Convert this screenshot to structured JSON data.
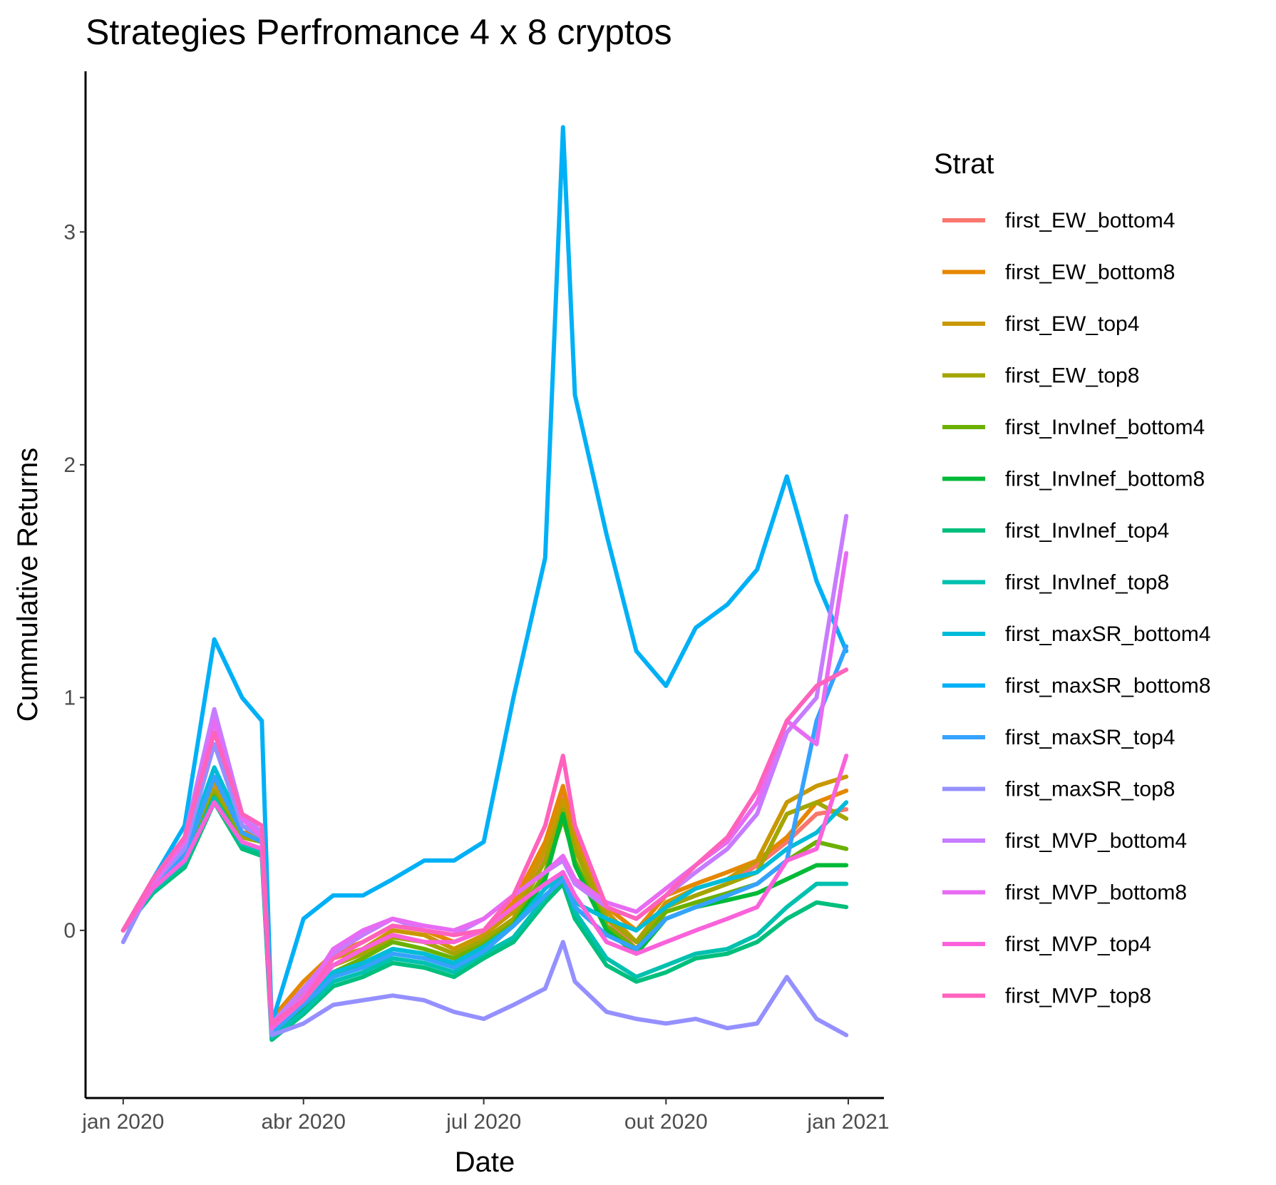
{
  "chart_data": {
    "type": "line",
    "title": "Strategies Perfromance 4 x 8 cryptos",
    "xlabel": "Date",
    "ylabel": "Cummulative Returns",
    "x_ticks": [
      {
        "date": "2020-01-01",
        "label": "jan 2020"
      },
      {
        "date": "2020-04-01",
        "label": "abr 2020"
      },
      {
        "date": "2020-07-01",
        "label": "jul 2020"
      },
      {
        "date": "2020-10-01",
        "label": "out 2020"
      },
      {
        "date": "2021-01-01",
        "label": "jan 2021"
      }
    ],
    "y_ticks": [
      0,
      1,
      2,
      3
    ],
    "xlim": [
      "2019-12-13",
      "2021-01-19"
    ],
    "ylim": [
      -0.72,
      3.69
    ],
    "grid": false,
    "legend": {
      "title": "Strat",
      "position": "right"
    },
    "x": [
      "2020-01-01",
      "2020-01-16",
      "2020-02-01",
      "2020-02-16",
      "2020-03-01",
      "2020-03-11",
      "2020-03-16",
      "2020-04-01",
      "2020-04-16",
      "2020-05-01",
      "2020-05-16",
      "2020-06-01",
      "2020-06-16",
      "2020-07-01",
      "2020-07-16",
      "2020-08-01",
      "2020-08-10",
      "2020-08-16",
      "2020-09-01",
      "2020-09-16",
      "2020-10-01",
      "2020-10-16",
      "2020-11-01",
      "2020-11-16",
      "2020-12-01",
      "2020-12-16",
      "2020-12-31"
    ],
    "series": [
      {
        "name": "first_EW_bottom4",
        "color": "#F8766D",
        "values": [
          0,
          0.18,
          0.32,
          0.62,
          0.4,
          0.38,
          -0.42,
          -0.28,
          -0.15,
          -0.1,
          -0.02,
          -0.05,
          -0.1,
          -0.05,
          0.05,
          0.32,
          0.58,
          0.35,
          0.05,
          -0.08,
          0.1,
          0.15,
          0.2,
          0.28,
          0.38,
          0.5,
          0.52
        ]
      },
      {
        "name": "first_EW_bottom8",
        "color": "#E58700",
        "values": [
          0,
          0.2,
          0.34,
          0.66,
          0.42,
          0.42,
          -0.38,
          -0.22,
          -0.1,
          -0.05,
          0.02,
          0,
          -0.05,
          0,
          0.12,
          0.38,
          0.62,
          0.4,
          0.1,
          0,
          0.15,
          0.2,
          0.25,
          0.3,
          0.4,
          0.55,
          0.6
        ]
      },
      {
        "name": "first_EW_top4",
        "color": "#C99800",
        "values": [
          0,
          0.19,
          0.33,
          0.64,
          0.41,
          0.4,
          -0.4,
          -0.25,
          -0.12,
          -0.08,
          0,
          -0.02,
          -0.08,
          -0.02,
          0.08,
          0.35,
          0.56,
          0.38,
          0.08,
          -0.05,
          0.12,
          0.18,
          0.22,
          0.3,
          0.55,
          0.62,
          0.66
        ]
      },
      {
        "name": "first_EW_top8",
        "color": "#A3A500",
        "values": [
          0,
          0.18,
          0.3,
          0.6,
          0.4,
          0.38,
          -0.4,
          -0.27,
          -0.15,
          -0.1,
          -0.03,
          -0.05,
          -0.1,
          -0.04,
          0.05,
          0.3,
          0.52,
          0.35,
          0.05,
          -0.05,
          0.1,
          0.15,
          0.2,
          0.25,
          0.5,
          0.55,
          0.48
        ]
      },
      {
        "name": "first_InvInef_bottom4",
        "color": "#6BB100",
        "values": [
          0,
          0.17,
          0.3,
          0.58,
          0.38,
          0.35,
          -0.42,
          -0.3,
          -0.18,
          -0.12,
          -0.05,
          -0.08,
          -0.12,
          -0.06,
          0.03,
          0.25,
          0.48,
          0.3,
          0.02,
          -0.08,
          0.08,
          0.12,
          0.16,
          0.2,
          0.3,
          0.38,
          0.35
        ]
      },
      {
        "name": "first_InvInef_bottom8",
        "color": "#00BA38",
        "values": [
          0,
          0.16,
          0.28,
          0.56,
          0.36,
          0.33,
          -0.45,
          -0.33,
          -0.2,
          -0.15,
          -0.08,
          -0.1,
          -0.15,
          -0.08,
          0.02,
          0.22,
          0.5,
          0.28,
          0,
          -0.1,
          0.05,
          0.1,
          0.13,
          0.16,
          0.22,
          0.28,
          0.28
        ]
      },
      {
        "name": "first_InvInef_top4",
        "color": "#00BF7D",
        "values": [
          0,
          0.16,
          0.27,
          0.55,
          0.35,
          0.32,
          -0.47,
          -0.36,
          -0.24,
          -0.2,
          -0.14,
          -0.16,
          -0.2,
          -0.12,
          -0.05,
          0.12,
          0.2,
          0.05,
          -0.15,
          -0.22,
          -0.18,
          -0.12,
          -0.1,
          -0.05,
          0.05,
          0.12,
          0.1
        ]
      },
      {
        "name": "first_InvInef_top8",
        "color": "#00C0AF",
        "values": [
          0,
          0.17,
          0.29,
          0.57,
          0.37,
          0.34,
          -0.46,
          -0.35,
          -0.22,
          -0.18,
          -0.12,
          -0.14,
          -0.18,
          -0.1,
          -0.03,
          0.14,
          0.25,
          0.08,
          -0.12,
          -0.2,
          -0.15,
          -0.1,
          -0.08,
          -0.02,
          0.1,
          0.2,
          0.2
        ]
      },
      {
        "name": "first_maxSR_bottom4",
        "color": "#00BCD8",
        "values": [
          0,
          0.2,
          0.34,
          0.7,
          0.45,
          0.4,
          -0.42,
          -0.3,
          -0.18,
          -0.14,
          -0.08,
          -0.1,
          -0.14,
          -0.07,
          0.02,
          0.18,
          0.25,
          0.12,
          0.05,
          0,
          0.1,
          0.18,
          0.22,
          0.25,
          0.35,
          0.42,
          0.55
        ]
      },
      {
        "name": "first_maxSR_bottom8",
        "color": "#00B0F6",
        "values": [
          0,
          0.22,
          0.45,
          1.25,
          1.0,
          0.9,
          -0.4,
          0.05,
          0.15,
          0.15,
          0.22,
          0.3,
          0.3,
          0.38,
          1.0,
          1.6,
          3.45,
          2.3,
          1.7,
          1.2,
          1.05,
          1.3,
          1.4,
          1.55,
          1.95,
          1.5,
          1.2
        ]
      },
      {
        "name": "first_maxSR_top4",
        "color": "#35A2FF",
        "values": [
          0,
          0.18,
          0.32,
          0.66,
          0.42,
          0.38,
          -0.44,
          -0.32,
          -0.2,
          -0.16,
          -0.1,
          -0.12,
          -0.16,
          -0.09,
          0.02,
          0.15,
          0.22,
          0.1,
          -0.02,
          -0.08,
          0.05,
          0.1,
          0.15,
          0.2,
          0.3,
          0.9,
          1.22
        ]
      },
      {
        "name": "first_maxSR_top8",
        "color": "#9590FF",
        "values": [
          -0.05,
          0.2,
          0.35,
          0.8,
          0.45,
          0.4,
          -0.45,
          -0.4,
          -0.32,
          -0.3,
          -0.28,
          -0.3,
          -0.35,
          -0.38,
          -0.32,
          -0.25,
          -0.05,
          -0.22,
          -0.35,
          -0.38,
          -0.4,
          -0.38,
          -0.42,
          -0.4,
          -0.2,
          -0.38,
          -0.45
        ]
      },
      {
        "name": "first_MVP_bottom4",
        "color": "#C77CFF",
        "values": [
          0,
          0.22,
          0.4,
          0.95,
          0.5,
          0.42,
          -0.4,
          -0.25,
          -0.1,
          -0.02,
          0.05,
          0,
          -0.02,
          0.05,
          0.15,
          0.25,
          0.3,
          0.2,
          0.1,
          0.05,
          0.15,
          0.25,
          0.35,
          0.5,
          0.85,
          1.0,
          1.78
        ]
      },
      {
        "name": "first_MVP_bottom8",
        "color": "#E76BF3",
        "values": [
          0,
          0.2,
          0.38,
          0.9,
          0.48,
          0.4,
          -0.42,
          -0.28,
          -0.08,
          0,
          0.05,
          0.02,
          0,
          0.05,
          0.15,
          0.25,
          0.32,
          0.22,
          0.12,
          0.08,
          0.18,
          0.28,
          0.38,
          0.55,
          0.9,
          0.8,
          1.62
        ]
      },
      {
        "name": "first_MVP_top4",
        "color": "#FA62DB",
        "values": [
          0,
          0.18,
          0.3,
          0.55,
          0.38,
          0.35,
          -0.42,
          -0.3,
          -0.15,
          -0.08,
          -0.02,
          -0.05,
          -0.05,
          0,
          0.1,
          0.2,
          0.25,
          0.15,
          -0.05,
          -0.1,
          -0.05,
          0,
          0.05,
          0.1,
          0.3,
          0.35,
          0.75
        ]
      },
      {
        "name": "first_MVP_top8",
        "color": "#FF62BC",
        "values": [
          0,
          0.22,
          0.4,
          0.85,
          0.5,
          0.45,
          -0.4,
          -0.3,
          -0.12,
          -0.05,
          0.02,
          0,
          -0.02,
          0,
          0.15,
          0.45,
          0.75,
          0.45,
          0.1,
          0.05,
          0.15,
          0.28,
          0.4,
          0.6,
          0.9,
          1.05,
          1.12
        ]
      }
    ]
  }
}
